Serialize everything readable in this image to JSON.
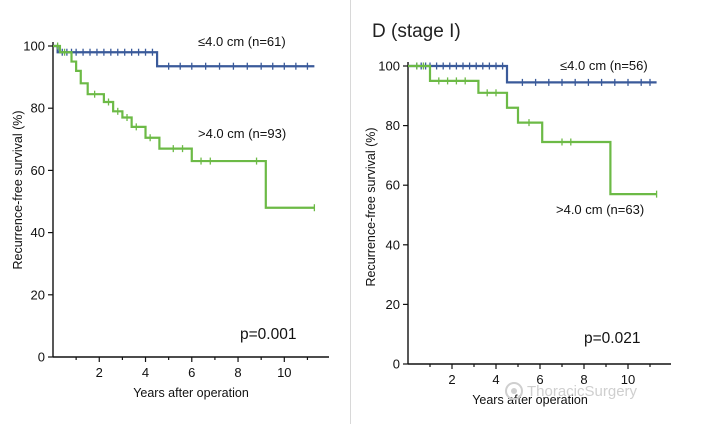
{
  "chart_data": [
    {
      "type": "line",
      "title": "",
      "xlabel": "Years after operation",
      "ylabel": "Recurrence-free survival (%)",
      "xlim": [
        0,
        11.5
      ],
      "ylim": [
        0,
        100
      ],
      "xticks": [
        "2",
        "4",
        "6",
        "8",
        "10"
      ],
      "yticks": [
        "0",
        "20",
        "40",
        "60",
        "80",
        "100"
      ],
      "p_value": "p=0.001",
      "series": [
        {
          "name": "≤4.0 cm (n=61)",
          "color": "#3a5a9a",
          "steps": [
            [
              0,
              100
            ],
            [
              0.2,
              98
            ],
            [
              4.5,
              98
            ],
            [
              4.5,
              93.5
            ],
            [
              11.3,
              93.5
            ]
          ],
          "censors": [
            0.4,
            0.6,
            0.8,
            1.0,
            1.3,
            1.6,
            1.9,
            2.2,
            2.5,
            2.8,
            3.1,
            3.4,
            3.7,
            4.0,
            4.3,
            5.0,
            5.5,
            6.0,
            6.6,
            7.2,
            7.8,
            8.4,
            9.0,
            9.5,
            10.0,
            10.5,
            11.0
          ]
        },
        {
          "name": ">4.0 cm (n=93)",
          "color": "#6cba46",
          "steps": [
            [
              0,
              100
            ],
            [
              0.3,
              98
            ],
            [
              0.8,
              95
            ],
            [
              1.0,
              92
            ],
            [
              1.2,
              88
            ],
            [
              1.5,
              84.5
            ],
            [
              2.2,
              82
            ],
            [
              2.6,
              79
            ],
            [
              3.0,
              77
            ],
            [
              3.4,
              74
            ],
            [
              4.0,
              70.5
            ],
            [
              4.6,
              67
            ],
            [
              6.0,
              63
            ],
            [
              9.2,
              63
            ],
            [
              9.2,
              48
            ],
            [
              11.3,
              48
            ]
          ],
          "censors": [
            0.2,
            0.5,
            1.8,
            2.4,
            2.8,
            3.2,
            3.6,
            4.2,
            5.2,
            5.6,
            6.4,
            6.8,
            8.8,
            11.3
          ]
        }
      ]
    },
    {
      "type": "line",
      "title": "D (stage I)",
      "xlabel": "Years after operation",
      "ylabel": "Recurrence-free survival (%)",
      "xlim": [
        0,
        11.5
      ],
      "ylim": [
        0,
        100
      ],
      "xticks": [
        "2",
        "4",
        "6",
        "8",
        "10"
      ],
      "yticks": [
        "0",
        "20",
        "40",
        "60",
        "80",
        "100"
      ],
      "p_value": "p=0.021",
      "series": [
        {
          "name": "≤4.0 cm (n=56)",
          "color": "#3a5a9a",
          "steps": [
            [
              0,
              100
            ],
            [
              4.5,
              100
            ],
            [
              4.5,
              94.5
            ],
            [
              11.3,
              94.5
            ]
          ],
          "censors": [
            0.4,
            0.6,
            0.8,
            1.0,
            1.3,
            1.6,
            1.9,
            2.2,
            2.5,
            2.8,
            3.1,
            3.4,
            3.7,
            4.0,
            4.3,
            5.2,
            5.8,
            6.4,
            7.0,
            7.6,
            8.2,
            8.8,
            9.4,
            10.0,
            10.6,
            11.0
          ]
        },
        {
          "name": ">4.0 cm (n=63)",
          "color": "#6cba46",
          "steps": [
            [
              0,
              100
            ],
            [
              1.0,
              100
            ],
            [
              1.0,
              95
            ],
            [
              3.2,
              95
            ],
            [
              3.2,
              91
            ],
            [
              4.5,
              91
            ],
            [
              4.5,
              86
            ],
            [
              5.0,
              86
            ],
            [
              5.0,
              81
            ],
            [
              6.1,
              81
            ],
            [
              6.1,
              74.5
            ],
            [
              9.2,
              74.5
            ],
            [
              9.2,
              57
            ],
            [
              11.3,
              57
            ]
          ],
          "censors": [
            0.4,
            0.7,
            1.4,
            1.8,
            2.2,
            2.6,
            3.6,
            4.0,
            5.5,
            7.0,
            7.4,
            11.3
          ]
        }
      ]
    }
  ],
  "watermark": {
    "text": "ThoracicSurgery",
    "icon": "wechat-icon"
  }
}
